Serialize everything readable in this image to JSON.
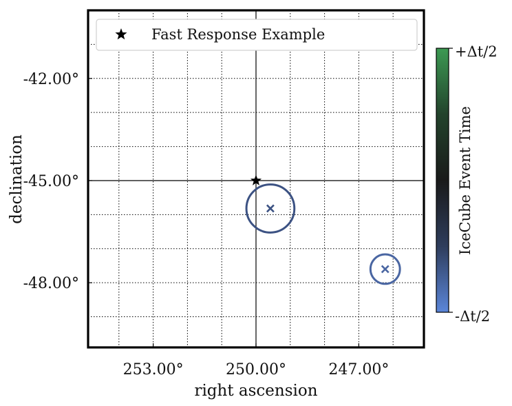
{
  "chart_data": {
    "type": "scatter",
    "title": "",
    "xlabel": "right ascension",
    "ylabel": "declination",
    "xlim": [
      254.9,
      245.1
    ],
    "ylim": [
      -49.9,
      -40.0
    ],
    "x_ticks": [
      253.0,
      250.0,
      247.0
    ],
    "x_tick_labels": [
      "253.00°",
      "250.00°",
      "247.00°"
    ],
    "y_ticks": [
      -42.0,
      -45.0,
      -48.0
    ],
    "y_tick_labels": [
      "-42.00°",
      "-45.00°",
      "-48.00°"
    ],
    "x_minor_grid_step": 1.0,
    "y_minor_grid_step": 1.0,
    "grid": true,
    "crosshair": {
      "ra": 250.0,
      "dec": -45.0
    },
    "legend": {
      "location": "top",
      "entries": [
        {
          "label": "Fast Response Example",
          "marker": "star",
          "color": "#000000"
        }
      ]
    },
    "source": {
      "ra": 250.0,
      "dec": -45.0,
      "marker": "star",
      "color": "#000000"
    },
    "events": [
      {
        "ra": 249.58,
        "dec": -45.82,
        "radius_deg": 0.7,
        "color": "#3c5283"
      },
      {
        "ra": 246.23,
        "dec": -47.6,
        "radius_deg": 0.43,
        "color": "#4a66a2"
      }
    ],
    "colorbar": {
      "label": "IceCube Event Time",
      "max_label": "+Δt/2",
      "min_label": "-Δt/2",
      "colors": [
        "#5b86d9",
        "#2e3d5c",
        "#1a1a1a",
        "#23432c",
        "#3c9a53"
      ]
    }
  }
}
